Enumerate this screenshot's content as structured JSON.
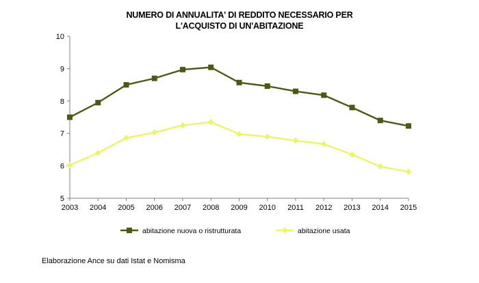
{
  "chart_data": {
    "type": "line",
    "title_lines": [
      "NUMERO DI ANNUALITA' DI REDDITO NECESSARIO PER",
      "L'ACQUISTO DI UN'ABITAZIONE"
    ],
    "categories": [
      "2003",
      "2004",
      "2005",
      "2006",
      "2007",
      "2008",
      "2009",
      "2010",
      "2011",
      "2012",
      "2013",
      "2014",
      "2015"
    ],
    "ylim": [
      5,
      10
    ],
    "yticks": [
      5,
      6,
      7,
      8,
      9,
      10
    ],
    "grid": false,
    "legend_position": "bottom",
    "series": [
      {
        "name": "abitazione nuova o ristrutturata",
        "color": "#4a5a14",
        "marker": "square",
        "values": [
          7.5,
          7.95,
          8.5,
          8.7,
          8.97,
          9.04,
          8.57,
          8.46,
          8.3,
          8.18,
          7.8,
          7.4,
          7.23
        ]
      },
      {
        "name": "abitazione usata",
        "color": "#eaf66a",
        "marker": "diamond",
        "values": [
          6.02,
          6.4,
          6.86,
          7.03,
          7.25,
          7.35,
          6.98,
          6.9,
          6.78,
          6.67,
          6.35,
          5.98,
          5.82
        ]
      }
    ]
  },
  "footer": {
    "source": "Elaborazione Ance su dati Istat e Nomisma"
  }
}
